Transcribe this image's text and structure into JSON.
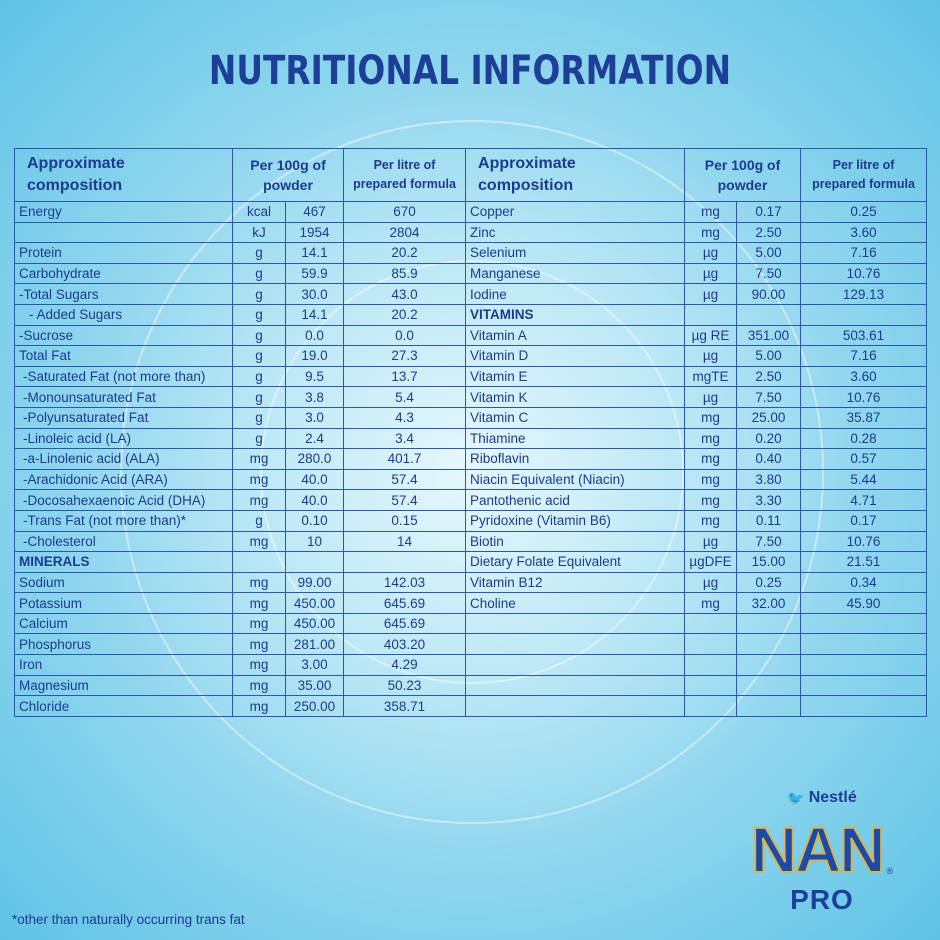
{
  "title": "NUTRITIONAL INFORMATION",
  "table": {
    "headers": {
      "composition": [
        "Approximate",
        "composition"
      ],
      "per_100g": [
        "Per 100g of",
        "powder"
      ],
      "per_litre": [
        "Per litre of",
        "prepared formula"
      ]
    },
    "left_rows": [
      {
        "name": "Energy",
        "unit": "kcal",
        "per_100g": "467",
        "per_litre": "670"
      },
      {
        "name": "",
        "unit": "kJ",
        "per_100g": "1954",
        "per_litre": "2804"
      },
      {
        "name": "Protein",
        "unit": "g",
        "per_100g": "14.1",
        "per_litre": "20.2"
      },
      {
        "name": "Carbohydrate",
        "unit": "g",
        "per_100g": "59.9",
        "per_litre": "85.9"
      },
      {
        "name": "-Total Sugars",
        "unit": "g",
        "per_100g": "30.0",
        "per_litre": "43.0"
      },
      {
        "name": "  - Added Sugars",
        "unit": "g",
        "per_100g": "14.1",
        "per_litre": "20.2",
        "indent": 2
      },
      {
        "name": "-Sucrose",
        "unit": "g",
        "per_100g": "0.0",
        "per_litre": "0.0"
      },
      {
        "name": "Total Fat",
        "unit": "g",
        "per_100g": "19.0",
        "per_litre": "27.3"
      },
      {
        "name": "-Saturated Fat (not more than)",
        "unit": "g",
        "per_100g": "9.5",
        "per_litre": "13.7",
        "indent": 1
      },
      {
        "name": "-Monounsaturated Fat",
        "unit": "g",
        "per_100g": "3.8",
        "per_litre": "5.4",
        "indent": 1
      },
      {
        "name": "-Polyunsaturated Fat",
        "unit": "g",
        "per_100g": "3.0",
        "per_litre": "4.3",
        "indent": 1
      },
      {
        "name": "-Linoleic acid (LA)",
        "unit": "g",
        "per_100g": "2.4",
        "per_litre": "3.4",
        "indent": 1
      },
      {
        "name": "-a-Linolenic acid (ALA)",
        "unit": "mg",
        "per_100g": "280.0",
        "per_litre": "401.7",
        "indent": 1
      },
      {
        "name": "-Arachidonic Acid (ARA)",
        "unit": "mg",
        "per_100g": "40.0",
        "per_litre": "57.4",
        "indent": 1
      },
      {
        "name": "-Docosahexaenoic Acid (DHA)",
        "unit": "mg",
        "per_100g": "40.0",
        "per_litre": "57.4",
        "indent": 1
      },
      {
        "name": "-Trans Fat (not more than)*",
        "unit": "g",
        "per_100g": "0.10",
        "per_litre": "0.15",
        "indent": 1
      },
      {
        "name": "-Cholesterol",
        "unit": "mg",
        "per_100g": "10",
        "per_litre": "14",
        "indent": 1
      },
      {
        "name": "MINERALS",
        "section": true
      },
      {
        "name": "Sodium",
        "unit": "mg",
        "per_100g": "99.00",
        "per_litre": "142.03"
      },
      {
        "name": "Potassium",
        "unit": "mg",
        "per_100g": "450.00",
        "per_litre": "645.69"
      },
      {
        "name": "Calcium",
        "unit": "mg",
        "per_100g": "450.00",
        "per_litre": "645.69"
      },
      {
        "name": "Phosphorus",
        "unit": "mg",
        "per_100g": "281.00",
        "per_litre": "403.20"
      },
      {
        "name": "Iron",
        "unit": "mg",
        "per_100g": "3.00",
        "per_litre": "4.29"
      },
      {
        "name": "Magnesium",
        "unit": "mg",
        "per_100g": "35.00",
        "per_litre": "50.23"
      },
      {
        "name": "Chloride",
        "unit": "mg",
        "per_100g": "250.00",
        "per_litre": "358.71"
      }
    ],
    "right_rows": [
      {
        "name": "Copper",
        "unit": "mg",
        "per_100g": "0.17",
        "per_litre": "0.25"
      },
      {
        "name": "Zinc",
        "unit": "mg",
        "per_100g": "2.50",
        "per_litre": "3.60"
      },
      {
        "name": "Selenium",
        "unit": "µg",
        "per_100g": "5.00",
        "per_litre": "7.16"
      },
      {
        "name": "Manganese",
        "unit": "µg",
        "per_100g": "7.50",
        "per_litre": "10.76"
      },
      {
        "name": "Iodine",
        "unit": "µg",
        "per_100g": "90.00",
        "per_litre": "129.13"
      },
      {
        "name": "VITAMINS",
        "section": true
      },
      {
        "name": "Vitamin A",
        "unit": "µg RE",
        "per_100g": "351.00",
        "per_litre": "503.61"
      },
      {
        "name": "Vitamin D",
        "unit": "µg",
        "per_100g": "5.00",
        "per_litre": "7.16"
      },
      {
        "name": "Vitamin E",
        "unit": "mgTE",
        "per_100g": "2.50",
        "per_litre": "3.60"
      },
      {
        "name": "Vitamin K",
        "unit": "µg",
        "per_100g": "7.50",
        "per_litre": "10.76"
      },
      {
        "name": "Vitamin C",
        "unit": "mg",
        "per_100g": "25.00",
        "per_litre": "35.87"
      },
      {
        "name": "Thiamine",
        "unit": "mg",
        "per_100g": "0.20",
        "per_litre": "0.28"
      },
      {
        "name": "Riboflavin",
        "unit": "mg",
        "per_100g": "0.40",
        "per_litre": "0.57"
      },
      {
        "name": "Niacin Equivalent (Niacin)",
        "unit": "mg",
        "per_100g": "3.80",
        "per_litre": "5.44"
      },
      {
        "name": "Pantothenic acid",
        "unit": "mg",
        "per_100g": "3.30",
        "per_litre": "4.71"
      },
      {
        "name": "Pyridoxine (Vitamin B6)",
        "unit": "mg",
        "per_100g": "0.11",
        "per_litre": "0.17"
      },
      {
        "name": "Biotin",
        "unit": "µg",
        "per_100g": "7.50",
        "per_litre": "10.76"
      },
      {
        "name": "Dietary Folate Equivalent",
        "unit": "µgDFE",
        "per_100g": "15.00",
        "per_litre": "21.51"
      },
      {
        "name": "Vitamin B12",
        "unit": "µg",
        "per_100g": "0.25",
        "per_litre": "0.34"
      },
      {
        "name": "Choline",
        "unit": "mg",
        "per_100g": "32.00",
        "per_litre": "45.90"
      }
    ]
  },
  "footnote": "*other than naturally occurring trans fat",
  "logo": {
    "brand": "Nestlé",
    "product": "NAN",
    "variant": "PRO",
    "mark": "®"
  },
  "colors": {
    "text": "#1b3b8f",
    "border": "#2b58ad",
    "background": "#8fd6ee"
  }
}
